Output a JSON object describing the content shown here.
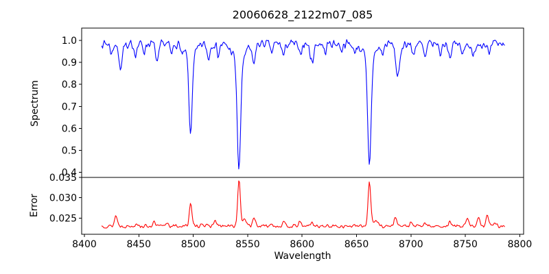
{
  "figure": {
    "background": "#ffffff",
    "axis_color": "#000000",
    "tick_label_color": "#000000"
  },
  "chart_data": {
    "type": "line",
    "title": "20060628_2122m07_085",
    "xlabel": "Wavelength",
    "legend": "none",
    "grid": false,
    "xlim": [
      8397.5,
      8803.5
    ],
    "x_data_range": [
      8416,
      8786
    ],
    "x_step": 0.74,
    "x_ticks": [
      {
        "v": 8400,
        "label": "8400"
      },
      {
        "v": 8450,
        "label": "8450"
      },
      {
        "v": 8500,
        "label": "8500"
      },
      {
        "v": 8550,
        "label": "8550"
      },
      {
        "v": 8600,
        "label": "8600"
      },
      {
        "v": 8650,
        "label": "8650"
      },
      {
        "v": 8700,
        "label": "8700"
      },
      {
        "v": 8750,
        "label": "8750"
      },
      {
        "v": 8800,
        "label": "8800"
      }
    ],
    "panels": [
      {
        "name": "spectrum",
        "ylabel": "Spectrum",
        "color": "#0000ff",
        "ylim": [
          0.377,
          1.056
        ],
        "yticks": [
          {
            "v": 1.0,
            "label": "1.0"
          },
          {
            "v": 0.9,
            "label": "0.9"
          },
          {
            "v": 0.8,
            "label": "0.8"
          },
          {
            "v": 0.7,
            "label": "0.7"
          },
          {
            "v": 0.6,
            "label": "0.6"
          },
          {
            "v": 0.5,
            "label": "0.5"
          },
          {
            "v": 0.4,
            "label": "0.4"
          }
        ],
        "base": 0.985,
        "noise_amp": 0.022,
        "clamp_max": 1.006,
        "seed": 7,
        "features": [
          {
            "c": 8425.0,
            "a": -0.045,
            "s": 1.2
          },
          {
            "c": 8433.0,
            "a": -0.105,
            "s": 1.6
          },
          {
            "c": 8440.0,
            "a": -0.03,
            "s": 1.0
          },
          {
            "c": 8447.0,
            "a": -0.045,
            "s": 1.3
          },
          {
            "c": 8455.0,
            "a": -0.035,
            "s": 1.1
          },
          {
            "c": 8467.0,
            "a": -0.09,
            "s": 1.4
          },
          {
            "c": 8480.0,
            "a": -0.05,
            "s": 1.2
          },
          {
            "c": 8490.0,
            "a": -0.035,
            "s": 1.0
          },
          {
            "c": 8497.5,
            "a": -0.36,
            "s": 1.4
          },
          {
            "c": 8497.5,
            "a": -0.06,
            "s": 5.0
          },
          {
            "c": 8514.0,
            "a": -0.065,
            "s": 1.4
          },
          {
            "c": 8523.0,
            "a": -0.05,
            "s": 1.2
          },
          {
            "c": 8542.0,
            "a": -0.5,
            "s": 1.6
          },
          {
            "c": 8542.0,
            "a": -0.07,
            "s": 6.0
          },
          {
            "c": 8555.5,
            "a": -0.085,
            "s": 1.5
          },
          {
            "c": 8572.0,
            "a": -0.04,
            "s": 1.2
          },
          {
            "c": 8583.0,
            "a": -0.055,
            "s": 1.3
          },
          {
            "c": 8598.0,
            "a": -0.055,
            "s": 1.3
          },
          {
            "c": 8609.0,
            "a": -0.08,
            "s": 1.7
          },
          {
            "c": 8621.0,
            "a": -0.04,
            "s": 1.2
          },
          {
            "c": 8636.0,
            "a": -0.03,
            "s": 1.0
          },
          {
            "c": 8648.0,
            "a": -0.04,
            "s": 1.1
          },
          {
            "c": 8661.8,
            "a": -0.49,
            "s": 1.6
          },
          {
            "c": 8661.8,
            "a": -0.06,
            "s": 6.0
          },
          {
            "c": 8674.0,
            "a": -0.04,
            "s": 1.2
          },
          {
            "c": 8688.0,
            "a": -0.155,
            "s": 1.8
          },
          {
            "c": 8702.0,
            "a": -0.05,
            "s": 1.3
          },
          {
            "c": 8713.0,
            "a": -0.065,
            "s": 1.4
          },
          {
            "c": 8727.0,
            "a": -0.045,
            "s": 1.2
          },
          {
            "c": 8736.0,
            "a": -0.06,
            "s": 1.3
          },
          {
            "c": 8747.0,
            "a": -0.05,
            "s": 1.2
          },
          {
            "c": 8757.0,
            "a": -0.065,
            "s": 1.4
          },
          {
            "c": 8772.0,
            "a": -0.055,
            "s": 1.3
          }
        ]
      },
      {
        "name": "error",
        "ylabel": "Error",
        "color": "#ff0000",
        "ylim": [
          0.021,
          0.035
        ],
        "yticks": [
          {
            "v": 0.035,
            "label": "0.035"
          },
          {
            "v": 0.03,
            "label": "0.030"
          },
          {
            "v": 0.025,
            "label": "0.025"
          }
        ],
        "base": 0.023,
        "noise_amp": 0.0005,
        "clamp_max": 0.0348,
        "seed": 13,
        "features": [
          {
            "c": 8429.0,
            "a": 0.0026,
            "s": 1.3
          },
          {
            "c": 8448.0,
            "a": 0.0008,
            "s": 1.2
          },
          {
            "c": 8464.0,
            "a": 0.0009,
            "s": 1.2
          },
          {
            "c": 8476.0,
            "a": 0.0009,
            "s": 1.2
          },
          {
            "c": 8497.5,
            "a": 0.0056,
            "s": 1.2
          },
          {
            "c": 8508.0,
            "a": 0.0008,
            "s": 1.2
          },
          {
            "c": 8520.0,
            "a": 0.0013,
            "s": 1.3
          },
          {
            "c": 8542.0,
            "a": 0.0112,
            "s": 1.2
          },
          {
            "c": 8547.0,
            "a": 0.0014,
            "s": 2.5
          },
          {
            "c": 8556.0,
            "a": 0.002,
            "s": 1.3
          },
          {
            "c": 8572.0,
            "a": 0.0007,
            "s": 1.2
          },
          {
            "c": 8583.0,
            "a": 0.0008,
            "s": 1.2
          },
          {
            "c": 8598.0,
            "a": 0.0009,
            "s": 1.2
          },
          {
            "c": 8609.0,
            "a": 0.0008,
            "s": 1.5
          },
          {
            "c": 8661.8,
            "a": 0.0108,
            "s": 1.25
          },
          {
            "c": 8667.0,
            "a": 0.0013,
            "s": 2.5
          },
          {
            "c": 8686.0,
            "a": 0.0022,
            "s": 1.4
          },
          {
            "c": 8700.0,
            "a": 0.0008,
            "s": 1.1
          },
          {
            "c": 8713.0,
            "a": 0.0007,
            "s": 1.2
          },
          {
            "c": 8736.0,
            "a": 0.001,
            "s": 1.2
          },
          {
            "c": 8752.0,
            "a": 0.0018,
            "s": 1.3
          },
          {
            "c": 8762.0,
            "a": 0.0022,
            "s": 1.3
          },
          {
            "c": 8770.0,
            "a": 0.0028,
            "s": 1.3
          },
          {
            "c": 8777.0,
            "a": 0.0012,
            "s": 1.1
          }
        ]
      }
    ]
  }
}
